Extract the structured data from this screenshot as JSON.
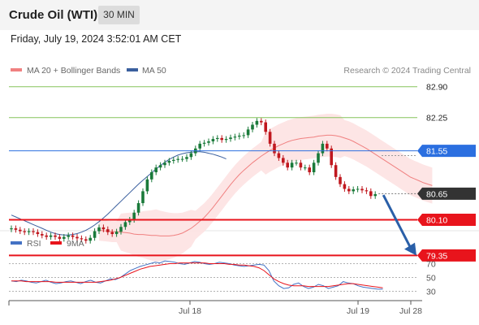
{
  "header": {
    "title": "Crude Oil (WTI)",
    "timeframe": "30 MIN"
  },
  "datetime": "Friday, July 19, 2024 3:52:01 AM CET",
  "legend": {
    "ma20": "MA 20 + Bollinger Bands",
    "ma50": "MA 50",
    "copyright": "Research © 2024 Trading Central",
    "rsi": "RSI",
    "rsi_ma": "9MA"
  },
  "colors": {
    "ma20": "#f08080",
    "ma50": "#3a5f9e",
    "bollinger": "#fde0e0",
    "up_candle": "#1a7a3a",
    "down_candle": "#c0181f",
    "support": "#e8141c",
    "pivot": "#2b6fe0",
    "resistance": "#86c45c",
    "last_price": "#333333",
    "arrow": "#2a5fa8",
    "rsi": "#4472c4",
    "rsi_ma": "#e8141c"
  },
  "chart_data": [
    {
      "type": "candlestick",
      "title": "Crude Oil (WTI)",
      "timeframe": "30 MIN",
      "ylim": [
        79.1,
        83.1
      ],
      "x_tick_labels": [
        "Jul 18",
        "Jul 19",
        "Jul 28"
      ],
      "levels": [
        {
          "value": 82.9,
          "label": "82.90",
          "kind": "resistance"
        },
        {
          "value": 82.25,
          "label": "82.25",
          "kind": "resistance"
        },
        {
          "value": 81.55,
          "label": "81.55",
          "kind": "pivot"
        },
        {
          "value": 80.65,
          "label": "80.65",
          "kind": "last"
        },
        {
          "value": 80.1,
          "label": "80.10",
          "kind": "support"
        },
        {
          "value": 79.35,
          "label": "79.35",
          "kind": "support"
        }
      ],
      "close_prices": [
        79.92,
        79.89,
        79.86,
        79.84,
        79.86,
        79.84,
        79.8,
        79.77,
        79.74,
        79.77,
        79.74,
        79.7,
        79.74,
        79.77,
        79.74,
        79.71,
        79.69,
        79.66,
        79.72,
        79.86,
        79.94,
        79.9,
        79.84,
        79.8,
        79.85,
        79.95,
        80.05,
        80.1,
        80.25,
        80.45,
        80.7,
        80.95,
        81.1,
        81.2,
        81.25,
        81.3,
        81.34,
        81.36,
        81.38,
        81.38,
        81.42,
        81.5,
        81.6,
        81.7,
        81.72,
        81.75,
        81.8,
        81.82,
        81.78,
        81.8,
        81.83,
        81.85,
        81.87,
        81.88,
        82.0,
        82.1,
        82.18,
        82.15,
        81.95,
        81.7,
        81.5,
        81.4,
        81.3,
        81.2,
        81.3,
        81.3,
        81.2,
        81.2,
        81.1,
        81.3,
        81.5,
        81.7,
        81.6,
        81.25,
        81.0,
        80.85,
        80.75,
        80.7,
        80.74,
        80.75,
        80.72,
        80.7,
        80.6,
        80.64
      ],
      "open_prices": [
        79.9,
        79.92,
        79.89,
        79.86,
        79.84,
        79.86,
        79.84,
        79.8,
        79.77,
        79.74,
        79.77,
        79.74,
        79.7,
        79.74,
        79.77,
        79.74,
        79.71,
        79.69,
        79.66,
        79.72,
        79.86,
        79.94,
        79.9,
        79.84,
        79.8,
        79.85,
        79.95,
        80.05,
        80.1,
        80.25,
        80.45,
        80.7,
        80.95,
        81.1,
        81.2,
        81.25,
        81.3,
        81.34,
        81.36,
        81.38,
        81.38,
        81.42,
        81.5,
        81.6,
        81.7,
        81.72,
        81.75,
        81.8,
        81.82,
        81.78,
        81.8,
        81.83,
        81.85,
        81.87,
        81.88,
        82.0,
        82.1,
        82.18,
        82.15,
        81.95,
        81.7,
        81.5,
        81.4,
        81.3,
        81.2,
        81.3,
        81.3,
        81.2,
        81.2,
        81.1,
        81.3,
        81.5,
        81.7,
        81.6,
        81.25,
        81.0,
        80.85,
        80.75,
        80.7,
        80.74,
        80.75,
        80.72,
        80.7,
        80.6
      ],
      "ma20": [
        79.88,
        79.87,
        79.86,
        79.85,
        79.85,
        79.84,
        79.83,
        79.82,
        79.8,
        79.79,
        79.79,
        79.78,
        79.77,
        79.77,
        79.76,
        79.76,
        79.76,
        79.77,
        79.79,
        79.82,
        79.87,
        79.92,
        79.99,
        80.07,
        80.15,
        80.25,
        80.36,
        80.48,
        80.6,
        80.72,
        80.84,
        80.95,
        81.05,
        81.14,
        81.22,
        81.3,
        81.37,
        81.44,
        81.5,
        81.56,
        81.61,
        81.66,
        81.7,
        81.74,
        81.77,
        81.79,
        81.81,
        81.82,
        81.83,
        81.84,
        81.86,
        81.87,
        81.88,
        81.88,
        81.87,
        81.85,
        81.82,
        81.79,
        81.75,
        81.7,
        81.65,
        81.6,
        81.54,
        81.48,
        81.42,
        81.36,
        81.3,
        81.24,
        81.18,
        81.12,
        81.06,
        81.0,
        80.96,
        80.92,
        80.88,
        80.85,
        80.82
      ],
      "ma50": [
        80.2,
        80.16,
        80.12,
        80.08,
        80.04,
        80.0,
        79.96,
        79.92,
        79.88,
        79.84,
        79.81,
        79.79,
        79.78,
        79.78,
        79.79,
        79.81,
        79.84,
        79.88,
        79.93,
        79.99,
        80.06,
        80.14,
        80.22,
        80.31,
        80.4,
        80.49,
        80.58,
        80.67,
        80.76,
        80.85,
        80.93,
        81.01,
        81.09,
        81.17,
        81.24,
        81.31,
        81.37,
        81.42,
        81.46,
        81.49,
        81.51,
        81.52,
        81.53,
        81.53,
        81.52,
        81.5,
        81.48,
        81.45,
        81.42,
        81.38
      ]
    },
    {
      "type": "line",
      "title": "RSI",
      "ylim": [
        20,
        80
      ],
      "y_tick_labels": [
        "70",
        "50",
        "30"
      ],
      "series": [
        {
          "name": "RSI",
          "values": [
            45,
            44,
            46,
            45,
            43,
            42,
            44,
            46,
            43,
            41,
            42,
            44,
            45,
            43,
            41,
            44,
            46,
            43,
            42,
            45,
            48,
            47,
            50,
            55,
            60,
            63,
            66,
            68,
            70,
            72,
            71,
            74,
            73,
            72,
            70,
            69,
            71,
            73,
            72,
            70,
            69,
            70,
            72,
            71,
            70,
            68,
            67,
            66,
            67,
            68,
            69,
            68,
            60,
            45,
            38,
            34,
            35,
            40,
            42,
            37,
            34,
            36,
            40,
            38,
            34,
            36,
            38,
            44,
            42,
            41,
            38,
            36,
            35,
            34,
            33,
            33
          ]
        },
        {
          "name": "9MA",
          "values": [
            45,
            45,
            45,
            44,
            44,
            44,
            44,
            44,
            44,
            43,
            43,
            43,
            43,
            43,
            43,
            43,
            43,
            43,
            44,
            45,
            46,
            48,
            50,
            53,
            56,
            59,
            62,
            64,
            66,
            67,
            68,
            69,
            70,
            70,
            71,
            71,
            71,
            71,
            71,
            71,
            70,
            70,
            70,
            70,
            69,
            69,
            68,
            68,
            67,
            66,
            64,
            60,
            54,
            48,
            44,
            41,
            39,
            38,
            38,
            38,
            37,
            37,
            37,
            37,
            37,
            38,
            39,
            40,
            41,
            41,
            40,
            39,
            38,
            37,
            36,
            35
          ]
        }
      ]
    }
  ]
}
